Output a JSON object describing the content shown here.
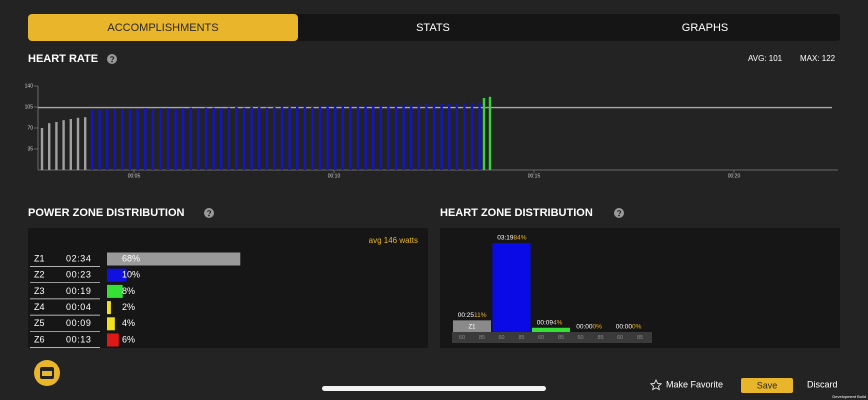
{
  "tabs": [
    "ACCOMPLISHMENTS",
    "STATS",
    "GRAPHS"
  ],
  "chart_data": [
    {
      "type": "bar",
      "title": "HEART RATE",
      "stats": [
        "AVG: 101",
        "MAX: 122"
      ],
      "series": [
        {
          "color": "#a0a0a0",
          "x": [
            2.7,
            2.88,
            3.06,
            3.24,
            3.42,
            3.6,
            3.78
          ],
          "values": [
            70,
            78,
            80,
            83,
            85,
            87,
            88
          ]
        },
        {
          "color": "#1414c8",
          "x": [
            3.95,
            4.14,
            4.33,
            4.52,
            4.71,
            4.9,
            5.09,
            5.28,
            5.47,
            5.66,
            5.85,
            6.04,
            6.23,
            6.42,
            6.61,
            6.8,
            6.99,
            7.18,
            7.37,
            7.56,
            7.75,
            7.94,
            8.13,
            8.32,
            8.51,
            8.7,
            8.89,
            9.08,
            9.27,
            9.46,
            9.65,
            9.84,
            10.03,
            10.22,
            10.41,
            10.6,
            10.79,
            10.98,
            11.17,
            11.36,
            11.55,
            11.74,
            11.93,
            12.12,
            12.31,
            12.5,
            12.69,
            12.88,
            13.07,
            13.26,
            13.45,
            13.64
          ],
          "values": [
            100,
            101,
            101,
            102,
            101,
            102,
            102,
            103,
            102,
            103,
            103,
            102,
            103,
            104,
            103,
            104,
            104,
            103,
            104,
            105,
            104,
            105,
            105,
            104,
            105,
            106,
            105,
            106,
            106,
            105,
            106,
            107,
            106,
            107,
            107,
            106,
            107,
            108,
            107,
            108,
            108,
            109,
            108,
            109,
            110,
            109,
            110,
            110,
            111,
            111,
            112,
            112
          ]
        },
        {
          "color": "#3ad13a",
          "x": [
            13.75,
            13.9
          ],
          "values": [
            120,
            122
          ]
        }
      ],
      "reference_line": 104,
      "xlim": [
        2.6,
        22.6
      ],
      "xticks": [
        {
          "value": 5,
          "label": "00:05"
        },
        {
          "value": 10,
          "label": "00:10"
        },
        {
          "value": 15,
          "label": "00:15"
        },
        {
          "value": 20,
          "label": "00:20"
        }
      ],
      "ylim": [
        0,
        140
      ],
      "yticks": [
        35,
        70,
        105,
        140
      ]
    },
    {
      "type": "hbar",
      "title": "POWER ZONE DISTRIBUTION",
      "subtitle": "avg 146 watts",
      "categories": [
        "Z1",
        "Z2",
        "Z3",
        "Z4",
        "Z5",
        "Z6"
      ],
      "times": [
        "02:34",
        "00:23",
        "00:19",
        "00:04",
        "00:09",
        "00:13"
      ],
      "values": [
        68,
        10,
        8,
        2,
        4,
        6
      ],
      "value_labels": [
        "68%",
        "10%",
        "8%",
        "2%",
        "4%",
        "6%"
      ],
      "colors": [
        "#9a9a9a",
        "#1010e0",
        "#35e035",
        "#f0e020",
        "#f0e020",
        "#e01818"
      ],
      "xlim": [
        0,
        100
      ]
    },
    {
      "type": "column",
      "title": "HEART ZONE DISTRIBUTION",
      "categories": [
        "Z1",
        null,
        null,
        null,
        null
      ],
      "times": [
        "00:25",
        "03:19",
        "00:09",
        "00:00",
        "00:00"
      ],
      "values": [
        11,
        84,
        4,
        0,
        0
      ],
      "value_labels": [
        "11%",
        "84%",
        "4%",
        "0%",
        "0%"
      ],
      "colors": [
        "#8a8a8a",
        "#0a0ae6",
        "#35e035",
        "#f0e020",
        "#e01818"
      ],
      "range_labels": [
        [
          "60",
          "85"
        ],
        [
          "60",
          "85"
        ],
        [
          "60",
          "85"
        ],
        [
          "60",
          "85"
        ],
        [
          "60",
          "85"
        ]
      ],
      "ylim": [
        0,
        100
      ]
    }
  ],
  "footer": {
    "favorite": "Make Favorite",
    "save": "Save",
    "discard": "Discard",
    "build": "Development Build"
  }
}
